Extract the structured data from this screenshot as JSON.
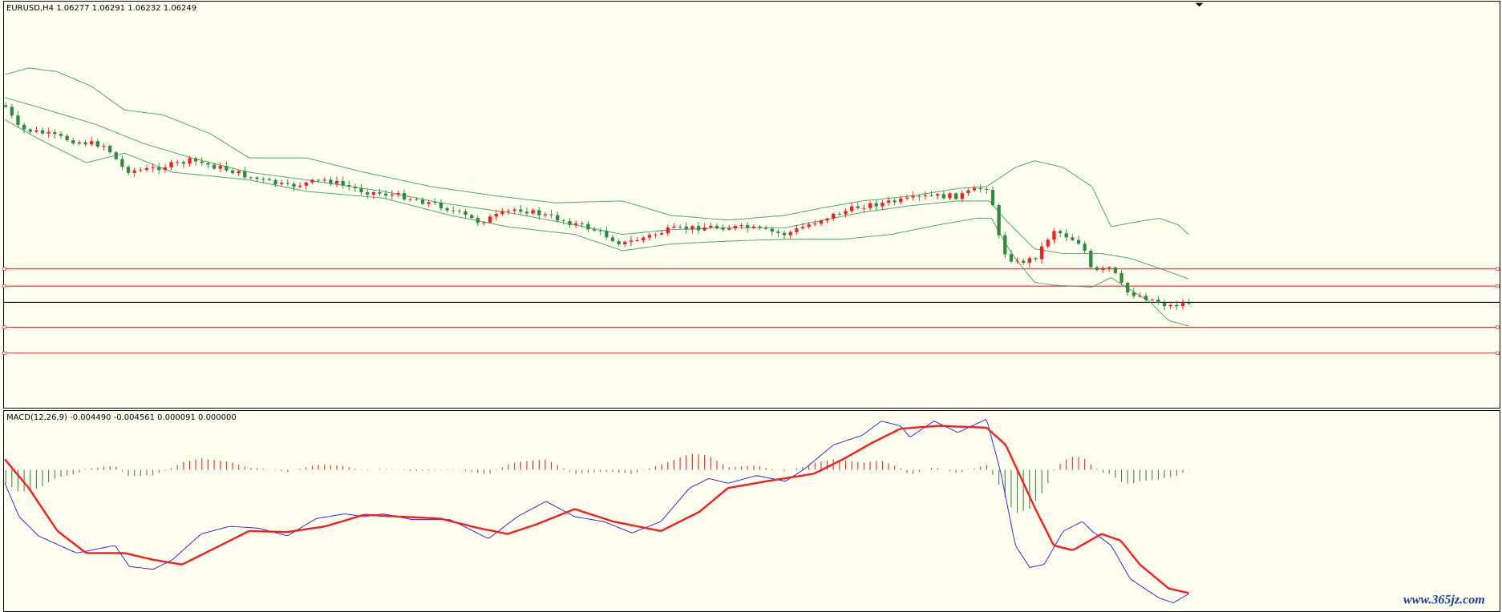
{
  "header": {
    "title": "EURUSD,H4 1.06277 1.06291 1.06232 1.06249"
  },
  "indicator": {
    "title": "MACD(12,26,9) -0.004490 -0.004561 0.000091 0.000000"
  },
  "watermark": "www.365jz.com"
}
